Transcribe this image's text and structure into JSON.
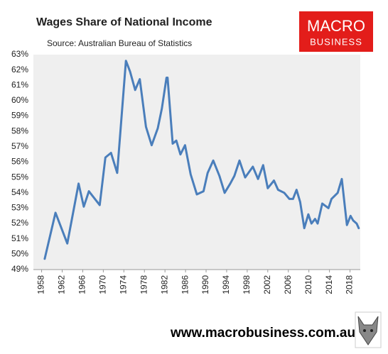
{
  "chart_data": {
    "type": "line",
    "title": "Wages Share of National Income",
    "subtitle": "Source: Australian Bureau of Statistics",
    "x": [
      1958.6,
      1960.7,
      1963.0,
      1965.2,
      1966.2,
      1967.2,
      1969.3,
      1970.4,
      1971.5,
      1972.7,
      1974.4,
      1975.2,
      1976.2,
      1977.1,
      1978.3,
      1979.4,
      1980.6,
      1981.4,
      1982.3,
      1982.5,
      1983.5,
      1984.2,
      1985.0,
      1985.9,
      1987.0,
      1988.2,
      1989.5,
      1990.3,
      1991.4,
      1992.6,
      1993.6,
      1994.7,
      1995.5,
      1996.5,
      1997.6,
      1999.1,
      2000.1,
      2001.1,
      2002.0,
      2003.2,
      2004.0,
      2005.2,
      2006.2,
      2006.9,
      2007.6,
      2008.3,
      2009.1,
      2009.9,
      2010.5,
      2011.2,
      2011.7,
      2012.6,
      2013.8,
      2014.4,
      2015.6,
      2016.4,
      2017.0,
      2017.4,
      2018.1,
      2018.6,
      2019.3,
      2019.7
    ],
    "values": [
      49.7,
      52.7,
      50.7,
      54.6,
      53.1,
      54.1,
      53.2,
      56.3,
      56.6,
      55.3,
      62.6,
      61.9,
      60.7,
      61.4,
      58.3,
      57.1,
      58.2,
      59.5,
      61.5,
      61.5,
      57.2,
      57.4,
      56.5,
      57.1,
      55.2,
      53.9,
      54.1,
      55.3,
      56.1,
      55.1,
      54.0,
      54.6,
      55.1,
      56.1,
      55.0,
      55.7,
      54.9,
      55.8,
      54.3,
      54.8,
      54.2,
      54.0,
      53.6,
      53.6,
      54.2,
      53.4,
      51.7,
      52.6,
      52.0,
      52.3,
      52.0,
      53.3,
      53.0,
      53.6,
      54.0,
      54.9,
      53.1,
      51.9,
      52.5,
      52.2,
      52.0,
      51.7
    ],
    "color": "#4a7ebb",
    "xlim": [
      1956.4,
      2020.0
    ],
    "xticks": [
      1958,
      1962,
      1966,
      1970,
      1974,
      1978,
      1982,
      1986,
      1990,
      1994,
      1998,
      2002,
      2006,
      2010,
      2014,
      2018
    ],
    "ylim": [
      49,
      63
    ],
    "yticks": [
      {
        "value": 49,
        "label": "49%"
      },
      {
        "value": 50,
        "label": "50%"
      },
      {
        "value": 51,
        "label": "51%"
      },
      {
        "value": 52,
        "label": "52%"
      },
      {
        "value": 53,
        "label": "53%"
      },
      {
        "value": 54,
        "label": "54%"
      },
      {
        "value": 55,
        "label": "55%"
      },
      {
        "value": 56,
        "label": "56%"
      },
      {
        "value": 57,
        "label": "57%"
      },
      {
        "value": 58,
        "label": "58%"
      },
      {
        "value": 59,
        "label": "59%"
      },
      {
        "value": 60,
        "label": "60%"
      },
      {
        "value": 61,
        "label": "61%"
      },
      {
        "value": 62,
        "label": "62%"
      },
      {
        "value": 63,
        "label": "63%"
      }
    ],
    "grid": false
  },
  "logo": [
    "MACRO",
    "BUSINESS"
  ],
  "footer": "www.macrobusiness.com.au"
}
